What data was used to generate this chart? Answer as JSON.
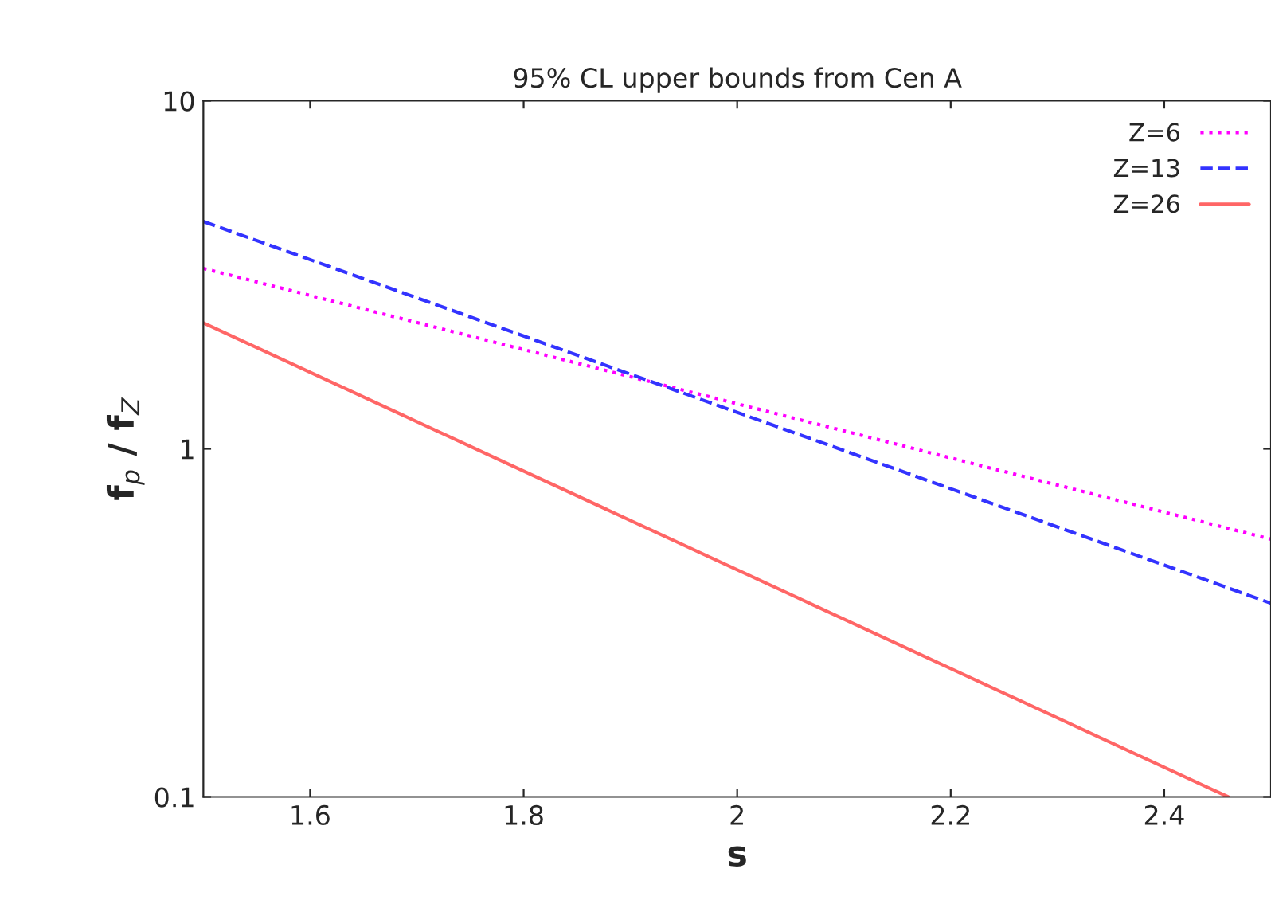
{
  "chart_data": {
    "type": "line",
    "title": "95% CL upper bounds from Cen A",
    "xlabel": "s",
    "ylabel": "f$_{p}$ / f$_{Z}$",
    "series": [
      {
        "name": "Z=6",
        "color": "#ff00ff",
        "line_style": "dotted",
        "x": [
          1.5,
          2.5
        ],
        "values": [
          3.3,
          0.55
        ]
      },
      {
        "name": "Z=13",
        "color": "#3333ff",
        "line_style": "dashed",
        "x": [
          1.5,
          2.5
        ],
        "values": [
          4.5,
          0.36
        ]
      },
      {
        "name": "Z=26",
        "color": "#ff6666",
        "line_style": "solid",
        "x": [
          1.5,
          2.46
        ],
        "values": [
          2.3,
          0.1
        ]
      }
    ],
    "xlim": [
      1.5,
      2.5
    ],
    "xticks": [
      1.6,
      1.8,
      2,
      2.2,
      2.4
    ],
    "ylim": [
      0.1,
      10
    ],
    "yticks": [
      0.1,
      1,
      10
    ],
    "log": "y",
    "grid": false,
    "legend": "top right"
  }
}
